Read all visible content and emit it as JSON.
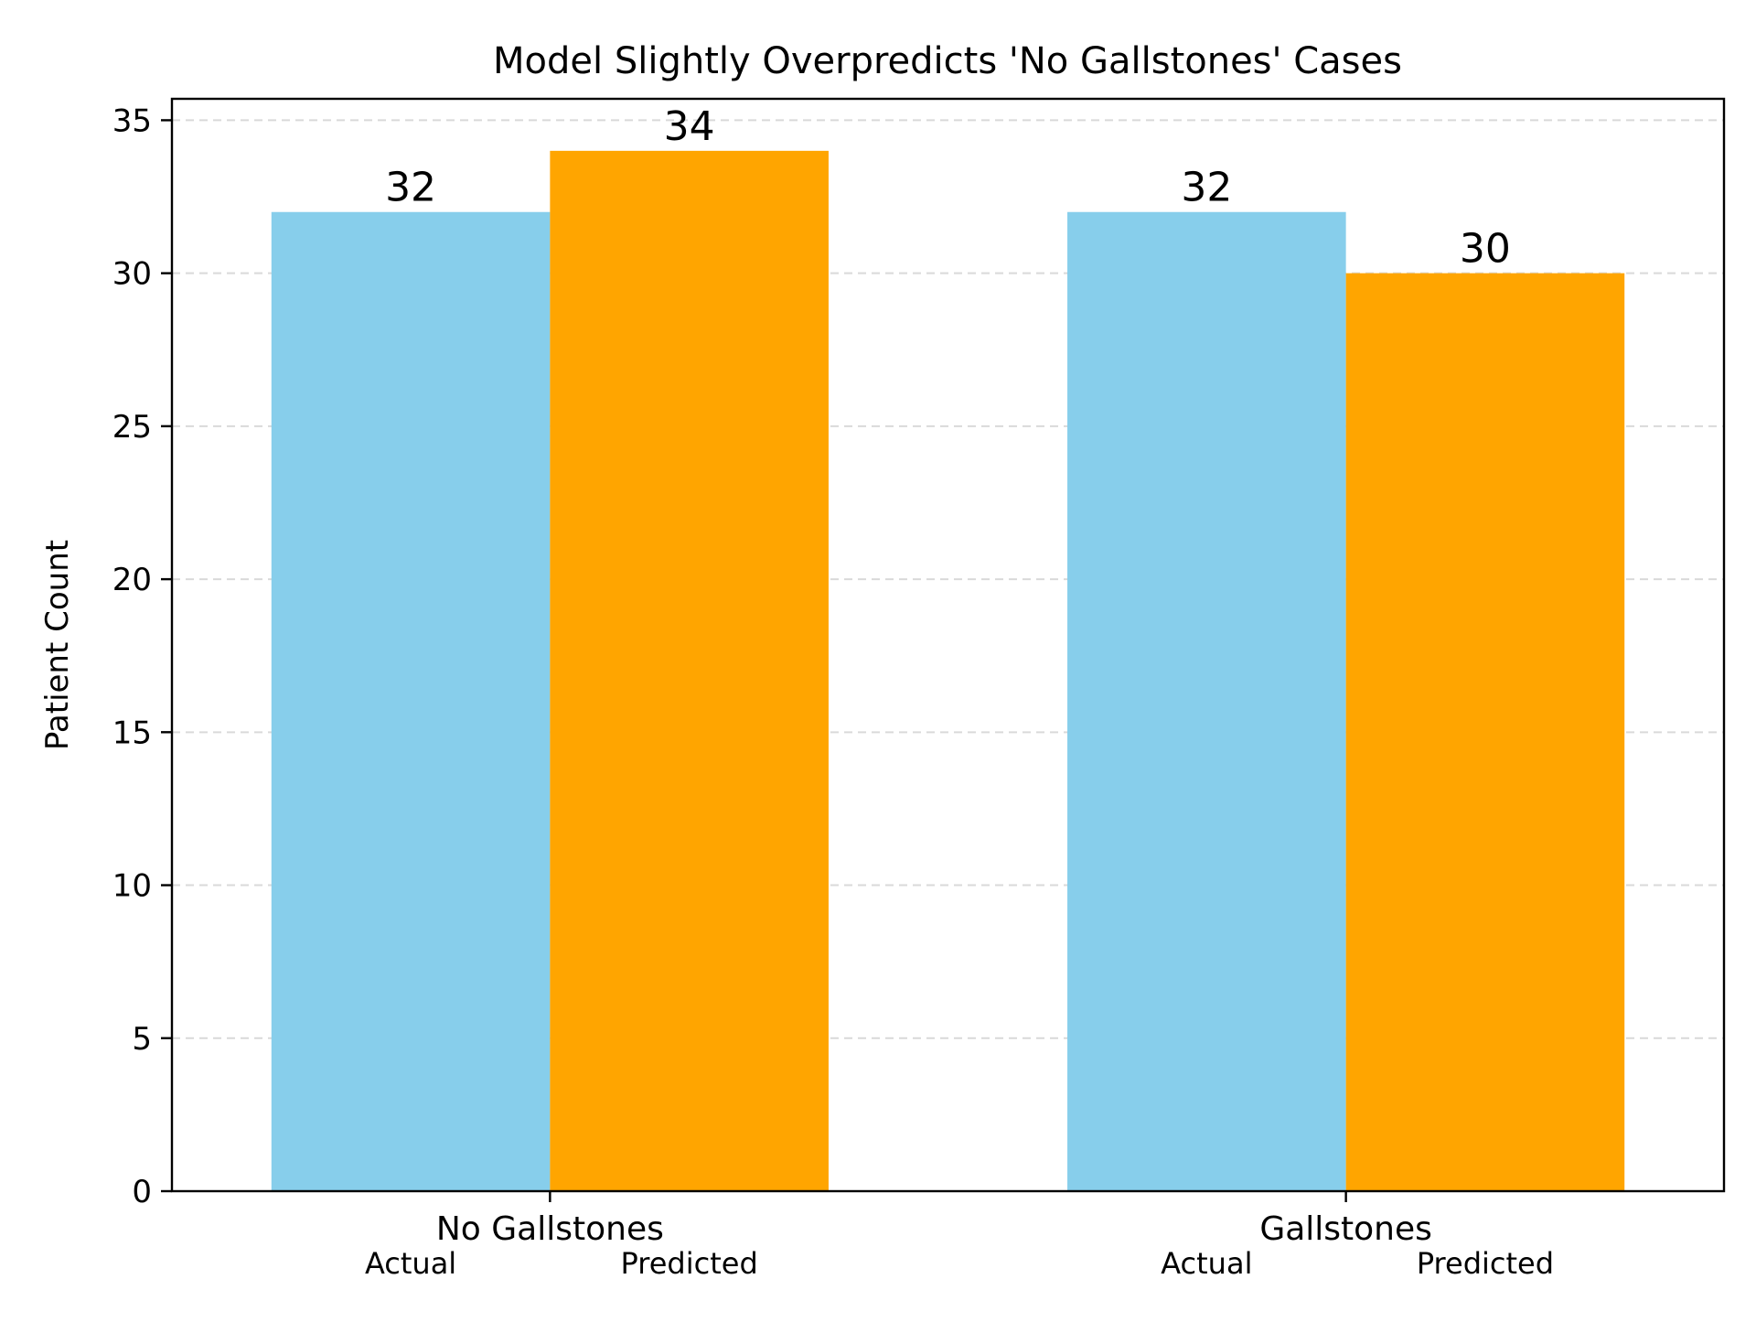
{
  "chart_data": {
    "type": "bar",
    "title": "Model Slightly Overpredicts 'No Gallstones' Cases",
    "xlabel": "",
    "ylabel": "Patient Count",
    "categories": [
      "No Gallstones",
      "Gallstones"
    ],
    "bar_labels": [
      "Actual",
      "Predicted"
    ],
    "series": [
      {
        "values": [
          32,
          32
        ],
        "color": "#87CEEB"
      },
      {
        "values": [
          34,
          30
        ],
        "color": "#FFA500"
      }
    ],
    "ylim": [
      0,
      35.7
    ],
    "yticks": [
      0,
      5,
      10,
      15,
      20,
      25,
      30,
      35
    ],
    "grid": "horizontal dashed",
    "legend": "none"
  }
}
